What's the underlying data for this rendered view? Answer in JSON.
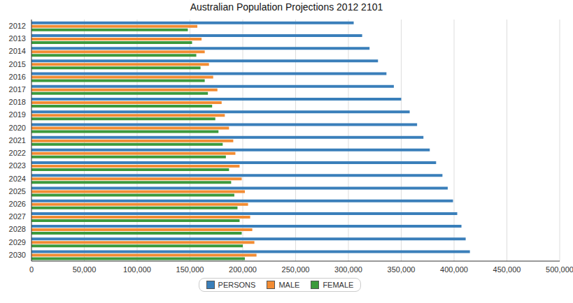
{
  "chart_data": {
    "type": "bar",
    "title": "Australian Population Projections 2012 2101",
    "orientation": "horizontal",
    "grid": true,
    "legend": "bottom",
    "categories": [
      "2012",
      "2013",
      "2014",
      "2015",
      "2016",
      "2017",
      "2018",
      "2019",
      "2020",
      "2021",
      "2022",
      "2023",
      "2024",
      "2025",
      "2026",
      "2027",
      "2028",
      "2029",
      "2030"
    ],
    "series": [
      {
        "name": "PERSONS",
        "color": "#3a7fba",
        "values": [
          305000,
          313000,
          320000,
          328000,
          336000,
          343000,
          350000,
          358000,
          365000,
          371000,
          377000,
          383000,
          389000,
          394000,
          399000,
          403000,
          407000,
          411000,
          415000
        ]
      },
      {
        "name": "MALE",
        "color": "#f28c33",
        "values": [
          157000,
          161000,
          164000,
          168000,
          172000,
          176000,
          180000,
          183000,
          187000,
          191000,
          193000,
          197000,
          199000,
          202000,
          205000,
          207000,
          209000,
          211000,
          213000
        ]
      },
      {
        "name": "FEMALE",
        "color": "#3c9a3c",
        "values": [
          148000,
          152000,
          156000,
          160000,
          164000,
          167000,
          171000,
          174000,
          177000,
          181000,
          184000,
          187000,
          189000,
          192000,
          195000,
          197000,
          199000,
          200000,
          202000
        ]
      }
    ],
    "xlim": [
      0,
      500000
    ],
    "xticks": [
      0,
      {
        "value": 50000,
        "label": "50,000"
      },
      {
        "value": 100000,
        "label": "100,000"
      },
      {
        "value": 150000,
        "label": "150,000"
      },
      {
        "value": 200000,
        "label": "200,000"
      },
      {
        "value": 250000,
        "label": "250,000"
      },
      {
        "value": 300000,
        "label": "300,000"
      },
      {
        "value": 350000,
        "label": "350,000"
      },
      {
        "value": 400000,
        "label": "400,000"
      },
      {
        "value": 450000,
        "label": "450,000"
      },
      {
        "value": 500000,
        "label": "500,000"
      }
    ]
  }
}
